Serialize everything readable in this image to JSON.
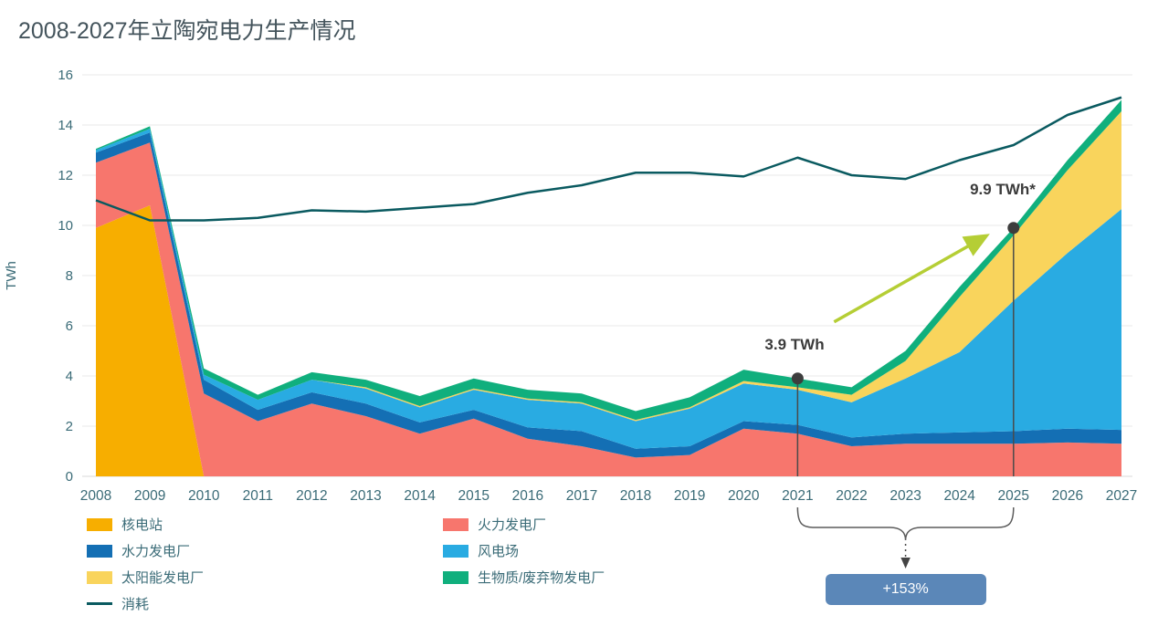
{
  "chart_data": {
    "type": "area",
    "stacked": true,
    "title": "2008-2027年立陶宛电力生产情况",
    "xlabel": "",
    "ylabel": "TWh",
    "ylim": [
      0,
      16
    ],
    "ytick_step": 2,
    "grid": true,
    "legend_position": "bottom-left",
    "x": [
      2008,
      2009,
      2010,
      2011,
      2012,
      2013,
      2014,
      2015,
      2016,
      2017,
      2018,
      2019,
      2020,
      2021,
      2022,
      2023,
      2024,
      2025,
      2026,
      2027
    ],
    "series": [
      {
        "name": "核电站",
        "color": "#F7AE00",
        "values": [
          9.9,
          10.8,
          0,
          0,
          0,
          0,
          0,
          0,
          0,
          0,
          0,
          0,
          0,
          0,
          0,
          0,
          0,
          0,
          0,
          0
        ]
      },
      {
        "name": "火力发电厂",
        "color": "#F7766D",
        "values": [
          2.6,
          2.5,
          3.3,
          2.2,
          2.9,
          2.4,
          1.7,
          2.3,
          1.5,
          1.2,
          0.75,
          0.85,
          1.9,
          1.7,
          1.2,
          1.3,
          1.3,
          1.3,
          1.35,
          1.3
        ]
      },
      {
        "name": "水力发电厂",
        "color": "#146FB4",
        "values": [
          0.4,
          0.4,
          0.55,
          0.45,
          0.45,
          0.5,
          0.45,
          0.35,
          0.45,
          0.6,
          0.35,
          0.35,
          0.3,
          0.35,
          0.35,
          0.4,
          0.45,
          0.5,
          0.55,
          0.55
        ]
      },
      {
        "name": "风电场",
        "color": "#29ABE2",
        "values": [
          0.1,
          0.15,
          0.2,
          0.4,
          0.5,
          0.6,
          0.6,
          0.8,
          1.1,
          1.1,
          1.1,
          1.5,
          1.5,
          1.4,
          1.4,
          2.2,
          3.2,
          5.2,
          7.0,
          8.8
        ]
      },
      {
        "name": "太阳能发电厂",
        "color": "#F9D45C",
        "values": [
          0,
          0,
          0,
          0,
          0,
          0.05,
          0.05,
          0.05,
          0.05,
          0.05,
          0.05,
          0.05,
          0.1,
          0.1,
          0.3,
          0.7,
          2.2,
          2.6,
          3.3,
          3.9
        ]
      },
      {
        "name": "生物质/废弃物发电厂",
        "color": "#10AF7D",
        "values": [
          0.05,
          0.1,
          0.25,
          0.2,
          0.3,
          0.3,
          0.4,
          0.4,
          0.35,
          0.35,
          0.35,
          0.4,
          0.45,
          0.35,
          0.3,
          0.4,
          0.4,
          0.3,
          0.4,
          0.45
        ]
      }
    ],
    "line": {
      "name": "消耗",
      "color": "#0A5A60",
      "values": [
        11.0,
        10.2,
        10.2,
        10.3,
        10.6,
        10.55,
        10.7,
        10.85,
        11.3,
        11.6,
        12.1,
        12.1,
        11.95,
        12.7,
        12.0,
        11.85,
        12.6,
        13.2,
        14.4,
        15.1
      ]
    }
  },
  "annotations": {
    "point_2021": {
      "x": 2021,
      "value": 3.9,
      "label": "3.9 TWh"
    },
    "point_2025": {
      "x": 2025,
      "value": 9.9,
      "label": "9.9 TWh*"
    },
    "growth_arrow_color": "#B5CE35",
    "bracket_color": "#5b5b5b",
    "badge": {
      "label": "+153%",
      "bg": "#5B87B8",
      "text_color": "#FFFFFF"
    }
  },
  "axis_style": {
    "tick_color": "#3a6b77",
    "grid_color": "#e9e9e9",
    "baseline_color": "#d8d8d8"
  }
}
